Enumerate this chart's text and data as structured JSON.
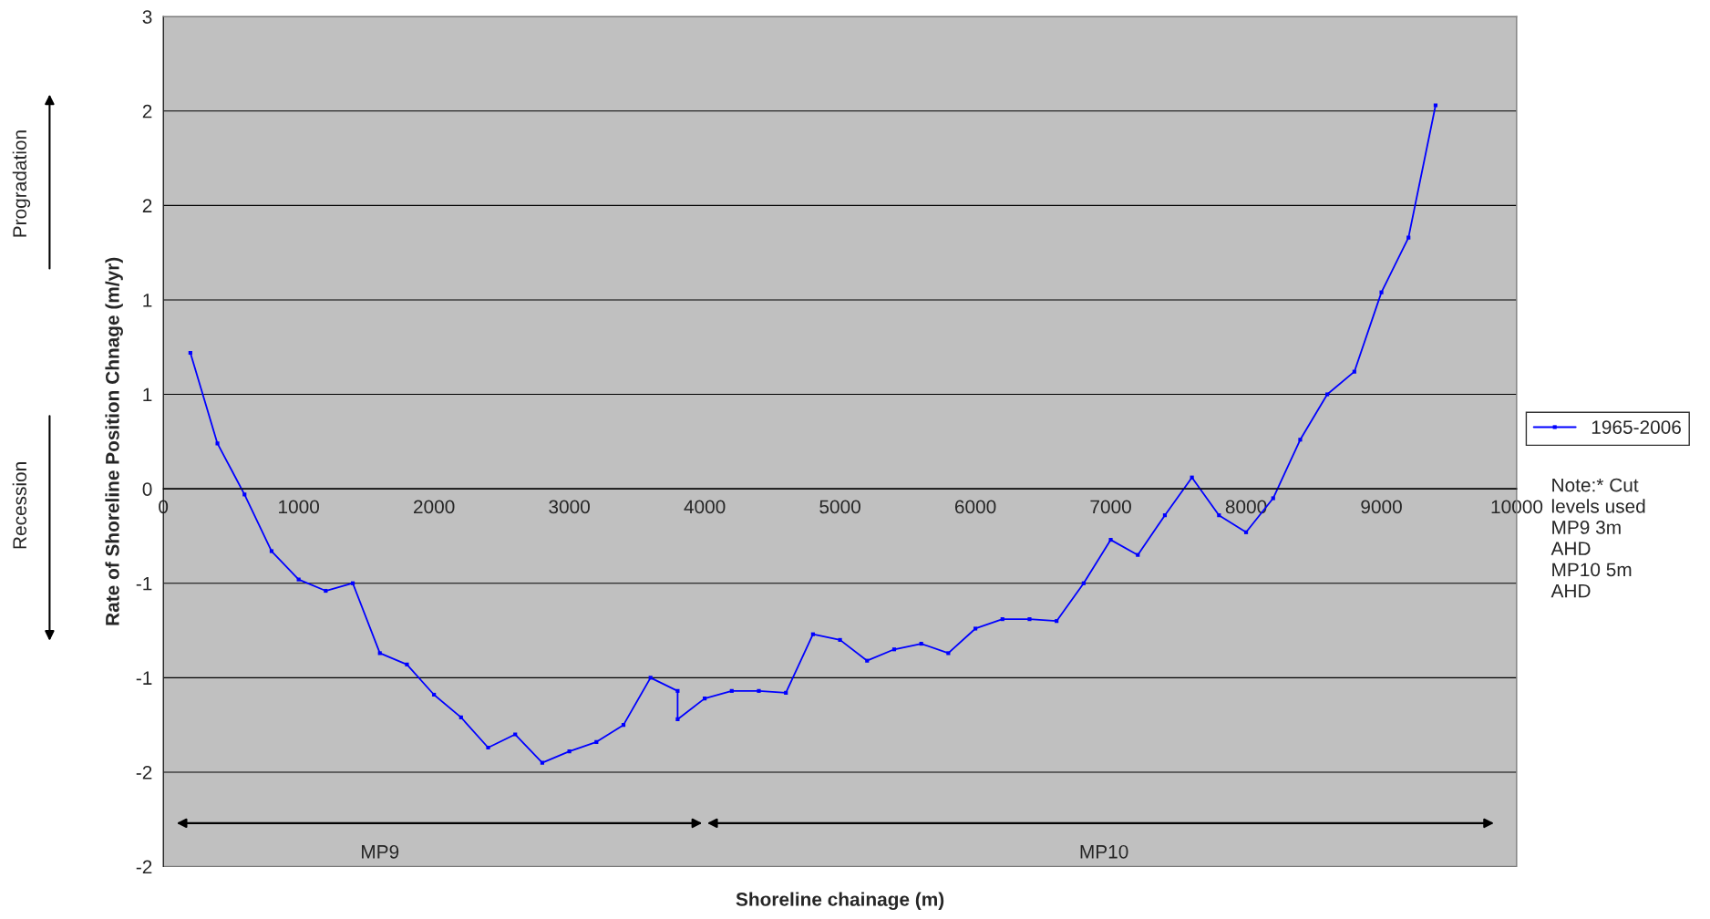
{
  "chart_data": {
    "type": "line",
    "xlabel": "Shoreline chainage (m)",
    "ylabel": "Rate of Shoreline Position Chnage (m/yr)",
    "series": [
      {
        "name": "1965-2006",
        "color": "#0000ff",
        "marker": "square",
        "x": [
          200,
          400,
          600,
          800,
          1000,
          1200,
          1400,
          1600,
          1800,
          2000,
          2200,
          2400,
          2600,
          2800,
          3000,
          3200,
          3400,
          3600,
          3800,
          3800,
          4000,
          4200,
          4400,
          4600,
          4800,
          5000,
          5200,
          5400,
          5600,
          5800,
          6000,
          6200,
          6400,
          6600,
          6800,
          7000,
          7200,
          7400,
          7600,
          7800,
          8000,
          8200,
          8400,
          8600,
          8800,
          9000,
          9200,
          9400
        ],
        "values": [
          0.72,
          0.24,
          -0.03,
          -0.33,
          -0.48,
          -0.54,
          -0.5,
          -0.87,
          -0.93,
          -1.09,
          -1.21,
          -1.37,
          -1.3,
          -1.45,
          -1.39,
          -1.34,
          -1.25,
          -1.0,
          -1.07,
          -1.22,
          -1.11,
          -1.07,
          -1.07,
          -1.08,
          -0.77,
          -0.8,
          -0.91,
          -0.85,
          -0.82,
          -0.87,
          -0.74,
          -0.69,
          -0.69,
          -0.7,
          -0.5,
          -0.27,
          -0.35,
          -0.14,
          0.06,
          -0.14,
          -0.23,
          -0.05,
          0.26,
          0.5,
          0.62,
          1.04,
          1.33,
          2.03
        ]
      }
    ],
    "xlim": [
      0,
      10000
    ],
    "xticks": [
      0,
      1000,
      2000,
      3000,
      4000,
      5000,
      6000,
      7000,
      8000,
      9000,
      10000
    ],
    "ylim": [
      -2.0,
      2.5
    ],
    "yticks": [
      {
        "value": -2.0,
        "label": "-2"
      },
      {
        "value": -1.5,
        "label": "-2"
      },
      {
        "value": -1.0,
        "label": "-1"
      },
      {
        "value": -0.5,
        "label": "-1"
      },
      {
        "value": 0,
        "label": "0"
      },
      {
        "value": 0.5,
        "label": "1"
      },
      {
        "value": 1.0,
        "label": "1"
      },
      {
        "value": 1.5,
        "label": "2"
      },
      {
        "value": 2.0,
        "label": "2"
      },
      {
        "value": 2.5,
        "label": "3"
      }
    ],
    "grid": "y",
    "legend": "right",
    "line_style": "solid",
    "annotations": [
      "Progradation",
      "Recession",
      "MP9",
      "MP10",
      "Note:* Cut\nlevels used\nMP9 3m\nAHD\nMP10 5m\nAHD"
    ]
  }
}
